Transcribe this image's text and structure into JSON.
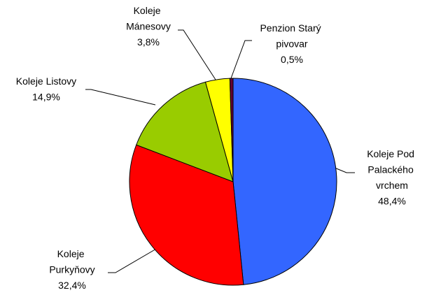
{
  "chart_data": {
    "type": "pie",
    "categories": [
      "Koleje Pod Palackého vrchem",
      "Koleje Purkyňovy",
      "Koleje Listovy",
      "Koleje Mánesovy",
      "Penzion Starý pivovar"
    ],
    "values": [
      48.4,
      32.4,
      14.9,
      3.8,
      0.5
    ],
    "value_labels": [
      "48,4%",
      "32,4%",
      "14,9%",
      "3,8%",
      "0,5%"
    ],
    "colors": [
      "#3366ff",
      "#ff0000",
      "#99cc00",
      "#ffff00",
      "#660033"
    ]
  }
}
